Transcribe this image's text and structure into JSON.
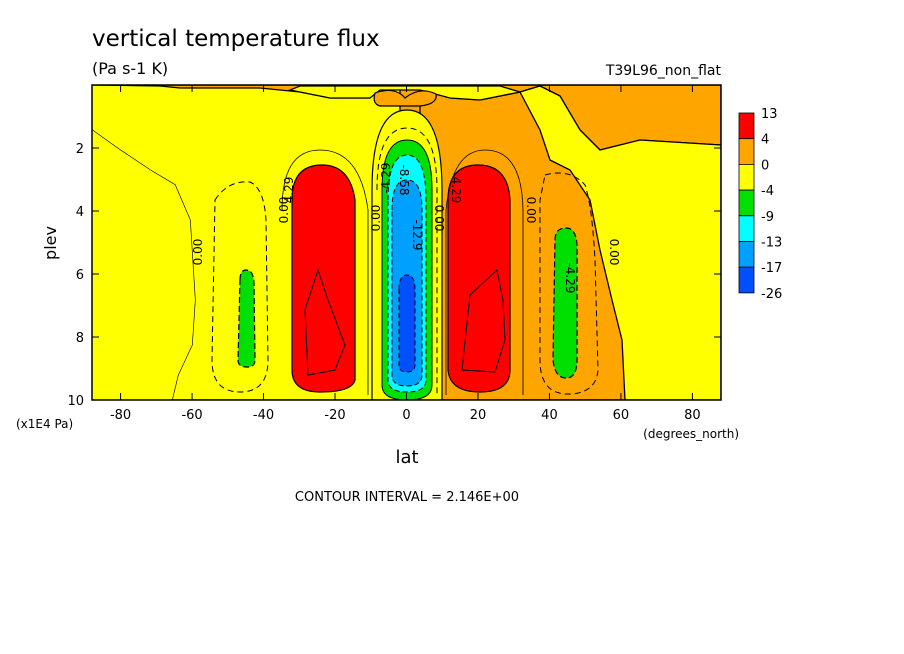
{
  "chart_data": {
    "type": "heatmap",
    "title": "vertical temperature flux",
    "subtitle": "(Pa s-1 K)",
    "experiment": "T39L96_non_flat",
    "xlabel": "lat",
    "xunits": "(degrees_north)",
    "ylabel": "plev",
    "yunits": "(x1E4 Pa)",
    "xlim": [
      -88,
      88
    ],
    "ylim": [
      10,
      0
    ],
    "xticks": [
      -80,
      -60,
      -40,
      -20,
      0,
      20,
      40,
      60,
      80
    ],
    "yticks": [
      2,
      4,
      6,
      8,
      10
    ],
    "colorbar": {
      "labels": [
        "13",
        "4",
        "0",
        "-4",
        "-9",
        "-13",
        "-17",
        "-26"
      ],
      "colors": [
        "#ff0000",
        "#ffa500",
        "#ffff00",
        "#00e000",
        "#00ffff",
        "#00a0ff",
        "#0050ff"
      ]
    },
    "contour_labels": [
      "0.00",
      "0.00",
      "0.00",
      "0.00",
      "0.00",
      "0.00",
      "4.29",
      "4.29",
      "-4.29",
      "-4.29",
      "-8.58",
      "-12.9"
    ],
    "footer": "CONTOUR INTERVAL = 2.146E+00",
    "features": [
      {
        "lat": -25,
        "plev_top": 2.7,
        "plev_bottom": 9.6,
        "min": 4,
        "max": 13
      },
      {
        "lat": 22,
        "plev_top": 2.7,
        "plev_bottom": 9.6,
        "min": 4,
        "max": 13
      },
      {
        "lat": 0,
        "plev_top": 2.0,
        "plev_bottom": 9.8,
        "min": -26,
        "max": -4
      },
      {
        "lat": -45,
        "plev_top": 6.0,
        "plev_bottom": 9.0,
        "min": -9,
        "max": -4
      },
      {
        "lat": 45,
        "plev_top": 4.8,
        "plev_bottom": 9.2,
        "min": -9,
        "max": -4
      }
    ]
  }
}
